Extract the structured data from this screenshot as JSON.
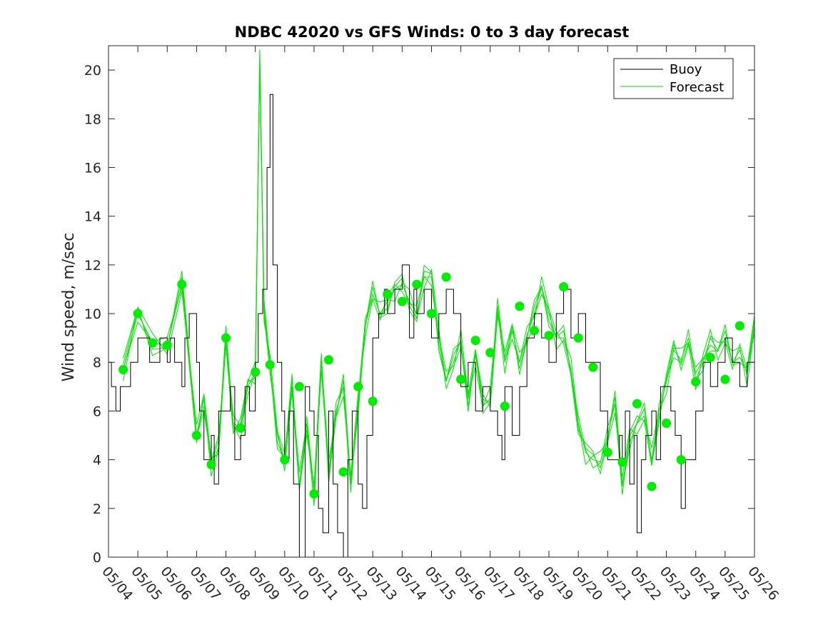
{
  "chart_data": {
    "type": "line",
    "title": "NDBC 42020 vs GFS Winds: 0 to 3 day forecast",
    "xlabel": "",
    "ylabel": "Wind speed, m/sec",
    "ylim": [
      0,
      21
    ],
    "xlim_days": [
      0,
      22
    ],
    "yticks": [
      "0",
      "2",
      "4",
      "6",
      "8",
      "10",
      "12",
      "14",
      "16",
      "18",
      "20"
    ],
    "xticks": [
      "05/04",
      "05/05",
      "05/06",
      "05/07",
      "05/08",
      "05/09",
      "05/10",
      "05/11",
      "05/12",
      "05/13",
      "05/14",
      "05/15",
      "05/16",
      "05/17",
      "05/18",
      "05/19",
      "05/20",
      "05/21",
      "05/22",
      "05/23",
      "05/24",
      "05/25",
      "05/26"
    ],
    "legend": {
      "position": "top-right",
      "entries": [
        "Buoy",
        "Forecast"
      ]
    },
    "colors": {
      "buoy": "#000000",
      "forecast": "#00e600",
      "analysis_points": "#00ee00"
    },
    "series": [
      {
        "name": "Buoy",
        "type": "step",
        "x_days": [
          0,
          0.1,
          0.25,
          0.4,
          0.5,
          0.75,
          1.0,
          1.2,
          1.4,
          1.6,
          1.75,
          2.0,
          2.1,
          2.25,
          2.5,
          2.6,
          2.75,
          3.0,
          3.1,
          3.25,
          3.5,
          3.6,
          3.75,
          4.0,
          4.15,
          4.3,
          4.5,
          4.65,
          4.8,
          5.0,
          5.1,
          5.25,
          5.4,
          5.5,
          5.6,
          5.75,
          5.9,
          6.0,
          6.15,
          6.3,
          6.5,
          6.7,
          6.85,
          7.0,
          7.15,
          7.3,
          7.5,
          7.65,
          7.8,
          8.0,
          8.15,
          8.3,
          8.5,
          8.65,
          8.8,
          9.0,
          9.2,
          9.4,
          9.5,
          9.75,
          10.0,
          10.25,
          10.4,
          10.5,
          10.75,
          11.0,
          11.25,
          11.5,
          11.75,
          12.0,
          12.25,
          12.5,
          12.75,
          13.0,
          13.25,
          13.4,
          13.5,
          13.75,
          14.0,
          14.25,
          14.5,
          14.75,
          15.0,
          15.25,
          15.5,
          15.75,
          16.0,
          16.25,
          16.5,
          16.75,
          17.0,
          17.2,
          17.4,
          17.5,
          17.6,
          17.75,
          17.9,
          18.0,
          18.15,
          18.3,
          18.5,
          18.65,
          18.8,
          19.0,
          19.15,
          19.3,
          19.5,
          19.65,
          19.8,
          20.0,
          20.25,
          20.5,
          20.75,
          21.0,
          21.25,
          21.5,
          21.75,
          22.0
        ],
        "values": [
          8,
          7,
          6,
          7,
          7,
          8,
          9,
          9,
          8,
          8,
          9,
          8,
          9,
          8,
          7,
          9,
          10,
          8,
          6,
          4,
          5,
          3,
          6,
          6,
          7,
          4,
          5,
          7,
          6,
          8,
          10,
          11,
          16,
          19,
          12,
          8,
          6,
          4,
          6,
          3,
          0,
          7,
          6,
          5,
          2,
          1,
          6,
          3,
          1,
          0,
          4,
          6,
          3,
          2,
          5,
          9,
          10,
          11,
          10,
          11,
          12,
          9,
          11,
          10,
          11,
          9,
          10,
          11,
          10,
          7,
          8,
          6,
          7,
          6,
          5,
          4,
          7,
          5,
          7,
          9,
          10,
          9,
          8,
          10,
          11,
          9,
          10,
          8,
          8,
          6,
          4,
          4,
          5,
          4,
          6,
          3,
          5,
          1,
          4,
          5,
          6,
          4,
          7,
          7,
          6,
          5,
          2,
          4,
          4,
          6,
          8,
          7,
          8,
          9,
          8,
          7,
          8,
          9
        ]
      },
      {
        "name": "Forecast",
        "type": "line",
        "x_days": [
          0.5,
          1.0,
          1.5,
          2.0,
          2.5,
          3.0,
          3.25,
          3.5,
          3.75,
          4.0,
          4.25,
          4.5,
          4.75,
          5.0,
          5.15,
          5.3,
          5.5,
          5.75,
          6.0,
          6.25,
          6.5,
          6.75,
          7.0,
          7.25,
          7.5,
          7.75,
          8.0,
          8.25,
          8.5,
          8.75,
          9.0,
          9.25,
          9.5,
          9.75,
          10.0,
          10.25,
          10.5,
          10.75,
          11.0,
          11.25,
          11.5,
          11.75,
          12.0,
          12.25,
          12.5,
          12.75,
          13.0,
          13.25,
          13.5,
          13.75,
          14.0,
          14.25,
          14.5,
          14.75,
          15.0,
          15.25,
          15.5,
          15.75,
          16.0,
          16.25,
          16.5,
          16.75,
          17.0,
          17.25,
          17.5,
          17.75,
          18.0,
          18.25,
          18.5,
          18.75,
          19.0,
          19.25,
          19.5,
          19.75,
          20.0,
          20.25,
          20.5,
          20.75,
          21.0,
          21.25,
          21.5,
          21.75,
          22.0
        ],
        "values": [
          7.7,
          10.0,
          8.8,
          8.7,
          11.2,
          5.0,
          6.5,
          3.8,
          4.5,
          9.0,
          5.5,
          5.3,
          7.0,
          7.6,
          20.5,
          10.0,
          7.9,
          5.0,
          4.0,
          7.0,
          3.0,
          5.5,
          2.6,
          8.0,
          3.5,
          6.0,
          7.0,
          3.0,
          6.4,
          9.5,
          10.8,
          10.0,
          10.5,
          11.0,
          11.2,
          10.5,
          10.0,
          11.5,
          11.5,
          9.0,
          7.3,
          8.0,
          8.9,
          6.5,
          8.3,
          6.2,
          6.5,
          10.3,
          8.0,
          9.3,
          8.0,
          9.1,
          10.0,
          11.1,
          10.0,
          9.0,
          9.0,
          7.7,
          5.5,
          4.3,
          4.0,
          3.9,
          5.0,
          6.3,
          2.9,
          5.0,
          5.5,
          5.8,
          4.0,
          6.0,
          7.2,
          8.5,
          8.1,
          9.0,
          7.3,
          8.0,
          9.0,
          8.5,
          9.0,
          8.0,
          8.5,
          7.5,
          9.5
        ]
      },
      {
        "name": "Forecast analysis points",
        "type": "scatter",
        "x_days": [
          0.5,
          1.0,
          1.5,
          2.0,
          2.5,
          3.0,
          3.5,
          4.0,
          4.5,
          5.0,
          5.5,
          6.0,
          6.5,
          7.0,
          7.5,
          8.0,
          8.5,
          9.0,
          9.5,
          10.0,
          10.5,
          11.0,
          11.5,
          12.0,
          12.5,
          13.0,
          13.5,
          14.0,
          14.5,
          15.0,
          15.5,
          16.0,
          16.5,
          17.0,
          17.5,
          18.0,
          18.5,
          19.0,
          19.5,
          20.0,
          20.5,
          21.0,
          21.5
        ],
        "values": [
          7.7,
          10.0,
          8.8,
          8.7,
          11.2,
          5.0,
          3.8,
          9.0,
          5.3,
          7.6,
          7.9,
          4.0,
          7.0,
          2.6,
          8.1,
          3.5,
          7.0,
          6.4,
          10.8,
          10.5,
          11.2,
          10.0,
          11.5,
          7.3,
          8.9,
          8.4,
          6.2,
          10.3,
          9.3,
          9.1,
          11.1,
          9.0,
          7.8,
          4.3,
          3.9,
          6.3,
          2.9,
          5.5,
          4.0,
          7.2,
          8.2,
          7.3,
          9.5
        ]
      }
    ]
  }
}
